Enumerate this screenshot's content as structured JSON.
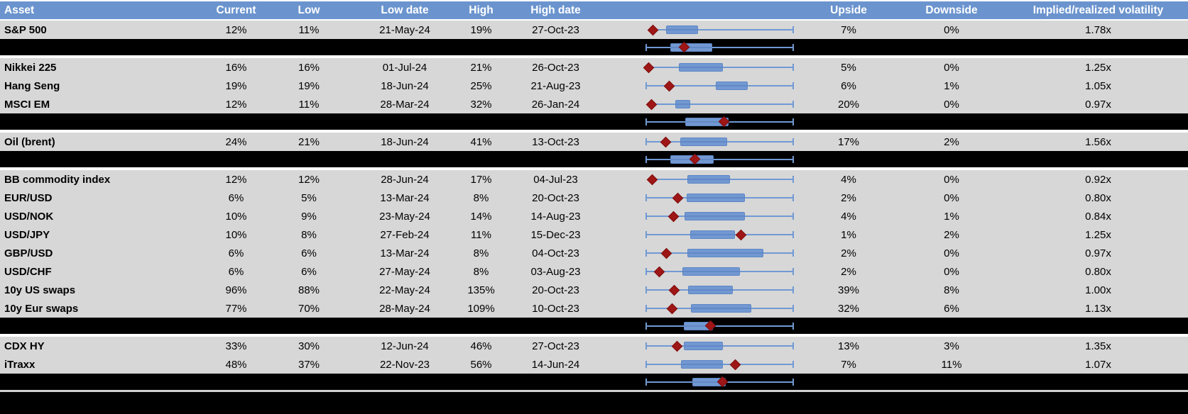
{
  "header": {
    "columns": [
      {
        "label": "Asset"
      },
      {
        "label": "Current"
      },
      {
        "label": "Low"
      },
      {
        "label": "Low date"
      },
      {
        "label": "High"
      },
      {
        "label": "High date"
      },
      {
        "label": ""
      },
      {
        "label": "Upside"
      },
      {
        "label": "Downside"
      },
      {
        "label": "Implied/realized volatility"
      }
    ]
  },
  "colors": {
    "header_bg": "#6b94ce",
    "header_text": "#ffffff",
    "row_bg": "#d7d7d7",
    "separator_row_bg": "#000000",
    "whisker_blue": "#7099d4",
    "box_fill_blue": "#7298d2",
    "box_border_blue": "#5c86c5",
    "diamond_red": "#9e1616"
  },
  "chart_data": {
    "type": "table",
    "description": "Implied volatility table with embedded 12m range box-and-whisker plots per asset; red diamond marks current level; black rows show group aggregate box plots. Plot fractions are 0-1 positions along each row's low-high whisker span.",
    "columns": [
      "Asset",
      "Current",
      "Low",
      "Low date",
      "High",
      "High date",
      "Range plot",
      "Upside",
      "Downside",
      "Implied/realized volatility"
    ],
    "rows": [
      {
        "row_type": "data",
        "asset": "S&P 500",
        "current": "12%",
        "low": "11%",
        "low_date": "21-May-24",
        "high": "19%",
        "high_date": "27-Oct-23",
        "upside": "7%",
        "downside": "0%",
        "implied_realized": "1.78x",
        "plot": {
          "whisker_left": 0.045,
          "cap_left": false,
          "box": [
            0.135,
            0.355
          ],
          "diamond": 0.045
        }
      },
      {
        "row_type": "aggregate",
        "gap_after": true,
        "plot": {
          "whisker_left": 0,
          "cap_left": true,
          "box": [
            0.165,
            0.45
          ],
          "diamond": 0.26
        }
      },
      {
        "row_type": "data",
        "asset": "Nikkei 225",
        "current": "16%",
        "low": "16%",
        "low_date": "01-Jul-24",
        "high": "21%",
        "high_date": "26-Oct-23",
        "upside": "5%",
        "downside": "0%",
        "implied_realized": "1.25x",
        "plot": {
          "whisker_left": 0.015,
          "cap_left": false,
          "box": [
            0.22,
            0.52
          ],
          "diamond": 0.015
        }
      },
      {
        "row_type": "data",
        "asset": "Hang Seng",
        "current": "19%",
        "low": "19%",
        "low_date": "18-Jun-24",
        "high": "25%",
        "high_date": "21-Aug-23",
        "upside": "6%",
        "downside": "1%",
        "implied_realized": "1.05x",
        "plot": {
          "whisker_left": 0,
          "cap_left": true,
          "box": [
            0.473,
            0.691
          ],
          "diamond": 0.155
        }
      },
      {
        "row_type": "data",
        "asset": "MSCI EM",
        "current": "12%",
        "low": "11%",
        "low_date": "28-Mar-24",
        "high": "32%",
        "high_date": "26-Jan-24",
        "upside": "20%",
        "downside": "0%",
        "implied_realized": "0.97x",
        "plot": {
          "whisker_left": 0.034,
          "cap_left": false,
          "box": [
            0.198,
            0.3
          ],
          "diamond": 0.034
        }
      },
      {
        "row_type": "aggregate",
        "gap_after": true,
        "plot": {
          "whisker_left": 0,
          "cap_left": true,
          "box": [
            0.265,
            0.56
          ],
          "diamond": 0.527
        }
      },
      {
        "row_type": "data",
        "asset": "Oil (brent)",
        "current": "24%",
        "low": "21%",
        "low_date": "18-Jun-24",
        "high": "41%",
        "high_date": "13-Oct-23",
        "upside": "17%",
        "downside": "2%",
        "implied_realized": "1.56x",
        "plot": {
          "whisker_left": 0,
          "cap_left": true,
          "box": [
            0.232,
            0.551
          ],
          "diamond": 0.135
        }
      },
      {
        "row_type": "aggregate",
        "gap_after": true,
        "plot": {
          "whisker_left": 0,
          "cap_left": true,
          "box": [
            0.164,
            0.459
          ],
          "diamond": 0.333
        }
      },
      {
        "row_type": "data",
        "asset": "BB commodity index",
        "current": "12%",
        "low": "12%",
        "low_date": "28-Jun-24",
        "high": "17%",
        "high_date": "04-Jul-23",
        "upside": "4%",
        "downside": "0%",
        "implied_realized": "0.92x",
        "plot": {
          "whisker_left": 0.039,
          "cap_left": false,
          "box": [
            0.28,
            0.57
          ],
          "diamond": 0.039
        }
      },
      {
        "row_type": "data",
        "asset": "EUR/USD",
        "current": "6%",
        "low": "5%",
        "low_date": "13-Mar-24",
        "high": "8%",
        "high_date": "20-Oct-23",
        "upside": "2%",
        "downside": "0%",
        "implied_realized": "0.80x",
        "plot": {
          "whisker_left": 0,
          "cap_left": true,
          "box": [
            0.275,
            0.671
          ],
          "diamond": 0.217
        }
      },
      {
        "row_type": "data",
        "asset": "USD/NOK",
        "current": "10%",
        "low": "9%",
        "low_date": "23-May-24",
        "high": "14%",
        "high_date": "14-Aug-23",
        "upside": "4%",
        "downside": "1%",
        "implied_realized": "0.84x",
        "plot": {
          "whisker_left": 0,
          "cap_left": true,
          "box": [
            0.261,
            0.671
          ],
          "diamond": 0.188
        }
      },
      {
        "row_type": "data",
        "asset": "USD/JPY",
        "current": "10%",
        "low": "8%",
        "low_date": "27-Feb-24",
        "high": "11%",
        "high_date": "15-Dec-23",
        "upside": "1%",
        "downside": "2%",
        "implied_realized": "1.25x",
        "plot": {
          "whisker_left": 0,
          "cap_left": true,
          "box": [
            0.3,
            0.604
          ],
          "diamond": 0.647
        }
      },
      {
        "row_type": "data",
        "asset": "GBP/USD",
        "current": "6%",
        "low": "6%",
        "low_date": "13-Mar-24",
        "high": "8%",
        "high_date": "04-Oct-23",
        "upside": "2%",
        "downside": "0%",
        "implied_realized": "0.97x",
        "plot": {
          "whisker_left": 0,
          "cap_left": true,
          "box": [
            0.28,
            0.797
          ],
          "diamond": 0.14
        }
      },
      {
        "row_type": "data",
        "asset": "USD/CHF",
        "current": "6%",
        "low": "6%",
        "low_date": "27-May-24",
        "high": "8%",
        "high_date": "03-Aug-23",
        "upside": "2%",
        "downside": "0%",
        "implied_realized": "0.80x",
        "plot": {
          "whisker_left": 0,
          "cap_left": true,
          "box": [
            0.246,
            0.638
          ],
          "diamond": 0.087
        }
      },
      {
        "row_type": "data",
        "asset": "10y US swaps",
        "current": "96%",
        "low": "88%",
        "low_date": "22-May-24",
        "high": "135%",
        "high_date": "20-Oct-23",
        "upside": "39%",
        "downside": "8%",
        "implied_realized": "1.00x",
        "plot": {
          "whisker_left": 0,
          "cap_left": true,
          "box": [
            0.285,
            0.589
          ],
          "diamond": 0.193
        }
      },
      {
        "row_type": "data",
        "asset": "10y Eur swaps",
        "current": "77%",
        "low": "70%",
        "low_date": "28-May-24",
        "high": "109%",
        "high_date": "10-Oct-23",
        "upside": "32%",
        "downside": "6%",
        "implied_realized": "1.13x",
        "plot": {
          "whisker_left": 0,
          "cap_left": true,
          "box": [
            0.304,
            0.715
          ],
          "diamond": 0.174
        }
      },
      {
        "row_type": "aggregate",
        "gap_after": true,
        "plot": {
          "whisker_left": 0,
          "cap_left": true,
          "box": [
            0.256,
            0.454
          ],
          "diamond": 0.435
        }
      },
      {
        "row_type": "data",
        "asset": "CDX HY",
        "current": "33%",
        "low": "30%",
        "low_date": "12-Jun-24",
        "high": "46%",
        "high_date": "27-Oct-23",
        "upside": "13%",
        "downside": "3%",
        "implied_realized": "1.35x",
        "plot": {
          "whisker_left": 0,
          "cap_left": true,
          "box": [
            0.256,
            0.522
          ],
          "diamond": 0.208
        }
      },
      {
        "row_type": "data",
        "asset": "iTraxx",
        "current": "48%",
        "low": "37%",
        "low_date": "22-Nov-23",
        "high": "56%",
        "high_date": "14-Jun-24",
        "upside": "7%",
        "downside": "11%",
        "implied_realized": "1.07x",
        "plot": {
          "whisker_left": 0,
          "cap_left": true,
          "box": [
            0.235,
            0.52
          ],
          "diamond": 0.604
        }
      },
      {
        "row_type": "aggregate",
        "gap_after": false,
        "plot": {
          "whisker_left": 0,
          "cap_left": true,
          "box": [
            0.314,
            0.541
          ],
          "diamond": 0.52
        }
      }
    ]
  }
}
